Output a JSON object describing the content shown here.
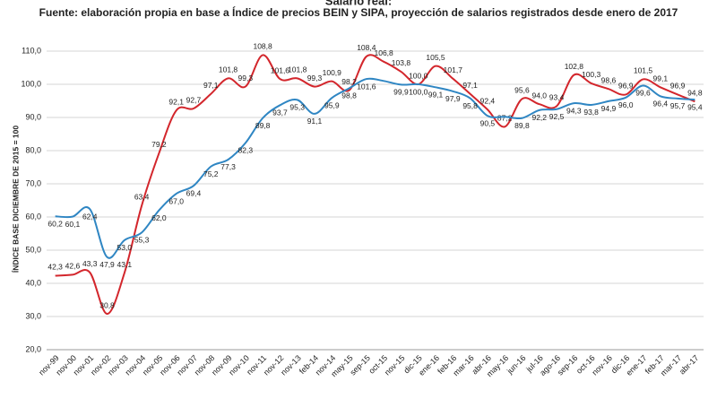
{
  "chart_data": {
    "type": "line",
    "title": "Salario real:",
    "subtitle": "Fuente: elaboración propia en base a Índice de precios BEIN y SIPA, proyección de salarios registrados desde enero de 2017",
    "ylabel": "ÍNDICE BASE DICIEMBRE DE 2015 = 100",
    "categories": [
      "nov-99",
      "nov-00",
      "nov-01",
      "nov-02",
      "nov-03",
      "nov-04",
      "nov-05",
      "nov-06",
      "nov-07",
      "nov-08",
      "nov-09",
      "nov-10",
      "nov-11",
      "nov-12",
      "nov-13",
      "feb-14",
      "nov-14",
      "may-15",
      "sep-15",
      "oct-15",
      "nov-15",
      "dic-15",
      "ene-16",
      "feb-16",
      "mar-16",
      "abr-16",
      "may-16",
      "jun-16",
      "jul-16",
      "ago-16",
      "sep-16",
      "oct-16",
      "nov-16",
      "dic-16",
      "ene-17",
      "feb-17",
      "mar-17",
      "abr-17"
    ],
    "series": [
      {
        "color": "#d3262c",
        "values": [
          42.3,
          42.6,
          43.3,
          30.8,
          43.1,
          63.4,
          79.2,
          92.1,
          92.7,
          97.1,
          101.8,
          99.3,
          108.8,
          101.6,
          101.8,
          99.3,
          100.9,
          98.2,
          108.4,
          106.8,
          103.8,
          100.0,
          105.5,
          101.7,
          97.1,
          92.4,
          87.2,
          95.6,
          94.0,
          93.4,
          102.8,
          100.3,
          98.6,
          96.9,
          101.5,
          99.1,
          96.9,
          94.8
        ],
        "value_labels": [
          "42,3",
          "42,6",
          "43,3",
          "30,8",
          "43,1",
          "63,4",
          "79,2",
          "92,1",
          "92,7",
          "97,1",
          "101,8",
          "99,3",
          "108,8",
          "101,6",
          "101,8",
          "99,3",
          "100,9",
          "98,2",
          "108,4",
          "106,8",
          "103,8",
          "100,0",
          "105,5",
          "101,7",
          "97,1",
          "92,4",
          "87,2",
          "95,6",
          "94,0",
          "93,4",
          "102,8",
          "100,3",
          "98,6",
          "96,9",
          "101,5",
          "99,1",
          "96,9",
          "94,8"
        ]
      },
      {
        "color": "#2f86c3",
        "values": [
          60.2,
          60.1,
          62.4,
          47.9,
          53.0,
          55.3,
          62.0,
          67.0,
          69.4,
          75.2,
          77.3,
          82.3,
          89.8,
          93.7,
          95.3,
          91.1,
          95.9,
          98.8,
          101.6,
          101.0,
          99.9,
          100.0,
          99.1,
          97.9,
          95.8,
          90.5,
          90.2,
          89.8,
          92.2,
          92.5,
          94.3,
          93.8,
          94.9,
          96.0,
          99.6,
          96.4,
          95.7,
          95.4
        ],
        "value_labels": [
          "60,2",
          "60,1",
          "62,4",
          "47,9",
          "53,0",
          "55,3",
          "62,0",
          "67,0",
          "69,4",
          "75,2",
          "77,3",
          "82,3",
          "89,8",
          "93,7",
          "95,3",
          "91,1",
          "95,9",
          "98,8",
          "101,6",
          null,
          "99,9",
          "100,0",
          "99,1",
          "97,9",
          "95,8",
          "90,5",
          null,
          "89,8",
          "92,2",
          "92,5",
          "94,3",
          "93,8",
          "94,9",
          "96,0",
          "99,6",
          "96,4",
          "95,7",
          "95,4"
        ]
      }
    ],
    "ylim": [
      20,
      110
    ],
    "yticks": [
      {
        "value": 20,
        "label": "20,0"
      },
      {
        "value": 30,
        "label": "30,0"
      },
      {
        "value": 40,
        "label": "40,0"
      },
      {
        "value": 50,
        "label": "50,0"
      },
      {
        "value": 60,
        "label": "60,0"
      },
      {
        "value": 70,
        "label": "70,0"
      },
      {
        "value": 80,
        "label": "80,0"
      },
      {
        "value": 90,
        "label": "90,0"
      },
      {
        "value": 100,
        "label": "100,0"
      },
      {
        "value": 110,
        "label": "110,0"
      }
    ],
    "grid": true
  }
}
